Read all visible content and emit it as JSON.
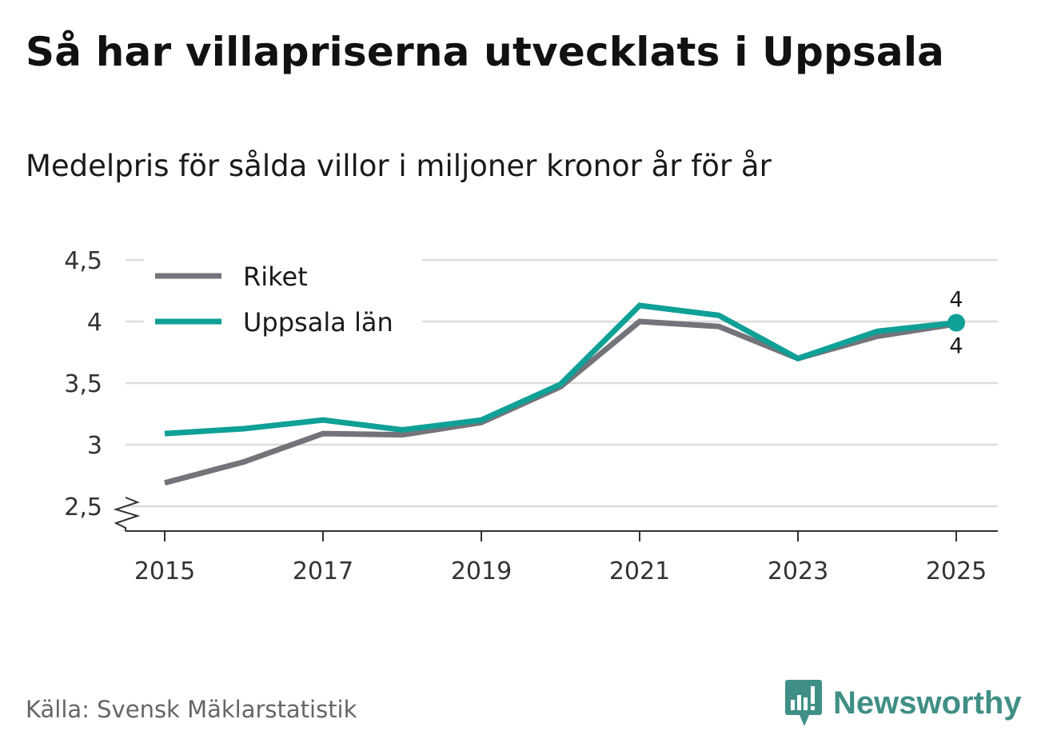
{
  "header": {
    "title": "Så har villapriserna utvecklats i Uppsala",
    "subtitle": "Medelpris för sålda villor i miljoner kronor år för år"
  },
  "footer": {
    "source": "Källa: Svensk Mäklarstatistik",
    "brand": "Newsworthy"
  },
  "colors": {
    "riket": "#75737a",
    "uppsala": "#0fa096",
    "grid": "#dddddd",
    "axis": "#333333",
    "brand": "#3f8f86"
  },
  "chart_data": {
    "type": "line",
    "title": "Så har villapriserna utvecklats i Uppsala",
    "subtitle": "Medelpris för sålda villor i miljoner kronor år för år",
    "xlabel": "",
    "ylabel": "",
    "x": [
      2015,
      2016,
      2017,
      2018,
      2019,
      2020,
      2021,
      2022,
      2023,
      2024,
      2025
    ],
    "x_ticks": [
      "2015",
      "2017",
      "2019",
      "2021",
      "2023",
      "2025"
    ],
    "y_ticks": [
      "2,5",
      "3",
      "3,5",
      "4",
      "4,5"
    ],
    "y_tick_values": [
      2.5,
      3,
      3.5,
      4,
      4.5
    ],
    "ylim": [
      2.5,
      4.5
    ],
    "y_axis_break": true,
    "grid": true,
    "legend_position": "top-left",
    "series": [
      {
        "name": "Riket",
        "key": "riket",
        "values": [
          2.69,
          2.86,
          3.09,
          3.08,
          3.18,
          3.47,
          4.0,
          3.96,
          3.7,
          3.88,
          3.98
        ],
        "end_label": "4"
      },
      {
        "name": "Uppsala län",
        "key": "uppsala",
        "values": [
          3.09,
          3.13,
          3.2,
          3.12,
          3.2,
          3.49,
          4.13,
          4.05,
          3.7,
          3.92,
          3.99
        ],
        "end_label": "4"
      }
    ]
  }
}
